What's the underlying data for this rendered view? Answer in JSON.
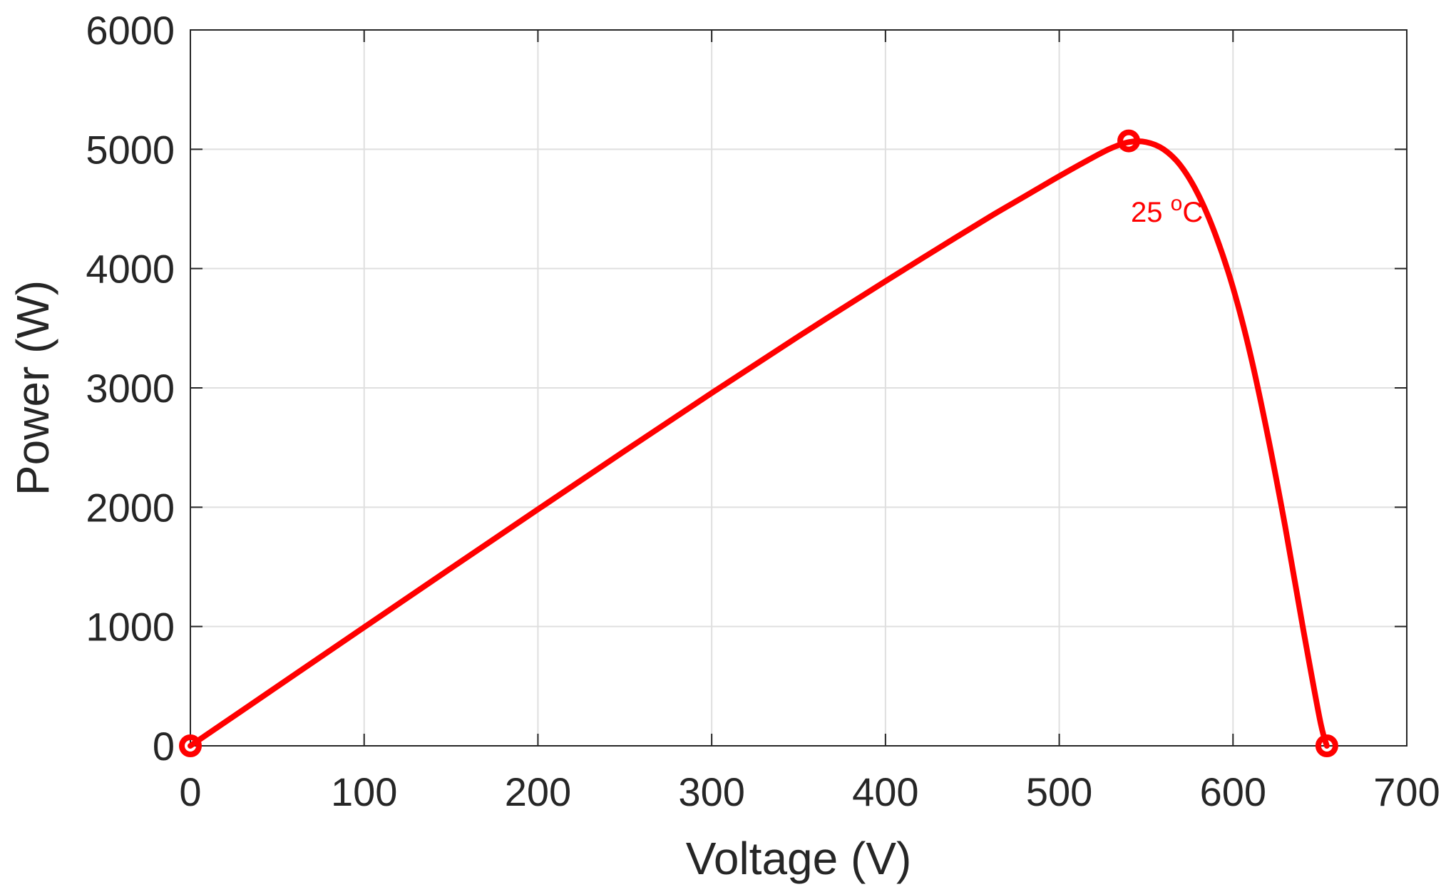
{
  "chart_data": {
    "type": "line",
    "title": "",
    "xlabel": "Voltage (V)",
    "ylabel": "Power (W)",
    "xlim": [
      0,
      700
    ],
    "ylim": [
      0,
      6000
    ],
    "x_ticks": [
      0,
      100,
      200,
      300,
      400,
      500,
      600,
      700
    ],
    "y_ticks": [
      0,
      1000,
      2000,
      3000,
      4000,
      5000,
      6000
    ],
    "x_tick_labels": [
      "0",
      "100",
      "200",
      "300",
      "400",
      "500",
      "600",
      "700"
    ],
    "y_tick_labels": [
      "0",
      "1000",
      "2000",
      "3000",
      "4000",
      "5000",
      "6000"
    ],
    "grid": true,
    "series": [
      {
        "color": "#ff0000",
        "x": [
          0,
          50,
          100,
          150,
          200,
          250,
          300,
          350,
          400,
          430,
          460,
          480,
          500,
          520,
          530,
          540,
          550,
          560,
          570,
          580,
          590,
          600,
          610,
          620,
          630,
          640,
          650,
          654
        ],
        "y": [
          0,
          497,
          994,
          1489,
          1982,
          2472,
          2957,
          3432,
          3894,
          4166,
          4434,
          4604,
          4774,
          4936,
          5010,
          5060,
          5060,
          5000,
          4860,
          4620,
          4280,
          3840,
          3280,
          2600,
          1840,
          1010,
          220,
          0
        ]
      }
    ],
    "markers": [
      {
        "x": 0,
        "y": 0,
        "color": "#ff0000"
      },
      {
        "x": 540,
        "y": 5070,
        "color": "#ff0000"
      },
      {
        "x": 654,
        "y": 0,
        "color": "#ff0000"
      }
    ],
    "annotations": [
      {
        "base": "25",
        "sup": "o",
        "tail": "C",
        "color": "#ff0000",
        "x": 540,
        "y": 4560
      }
    ]
  }
}
